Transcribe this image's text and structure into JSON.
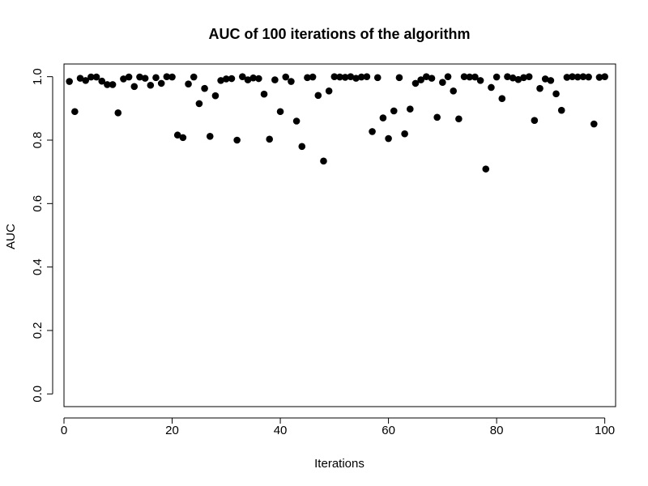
{
  "chart_data": {
    "type": "scatter",
    "title": "AUC of  100  iterations of the algorithm",
    "xlabel": "Iterations",
    "ylabel": "AUC",
    "xlim": [
      0,
      102
    ],
    "ylim": [
      -0.04,
      1.04
    ],
    "xticks": [
      0,
      20,
      40,
      60,
      80,
      100
    ],
    "yticks": [
      0.0,
      0.2,
      0.4,
      0.6,
      0.8,
      1.0
    ],
    "xtick_labels": [
      "0",
      "20",
      "40",
      "60",
      "80",
      "100"
    ],
    "ytick_labels": [
      "0.0",
      "0.2",
      "0.4",
      "0.6",
      "0.8",
      "1.0"
    ],
    "grid": false,
    "legend": "none",
    "marker_color": "#000000",
    "points": [
      {
        "x": 1,
        "y": 0.985
      },
      {
        "x": 2,
        "y": 0.89
      },
      {
        "x": 3,
        "y": 0.995
      },
      {
        "x": 4,
        "y": 0.988
      },
      {
        "x": 5,
        "y": 0.999
      },
      {
        "x": 6,
        "y": 0.999
      },
      {
        "x": 7,
        "y": 0.986
      },
      {
        "x": 8,
        "y": 0.975
      },
      {
        "x": 9,
        "y": 0.975
      },
      {
        "x": 10,
        "y": 0.886
      },
      {
        "x": 11,
        "y": 0.993
      },
      {
        "x": 12,
        "y": 0.999
      },
      {
        "x": 13,
        "y": 0.969
      },
      {
        "x": 14,
        "y": 0.999
      },
      {
        "x": 15,
        "y": 0.995
      },
      {
        "x": 16,
        "y": 0.973
      },
      {
        "x": 17,
        "y": 0.997
      },
      {
        "x": 18,
        "y": 0.979
      },
      {
        "x": 19,
        "y": 1.0
      },
      {
        "x": 20,
        "y": 0.999
      },
      {
        "x": 21,
        "y": 0.816
      },
      {
        "x": 22,
        "y": 0.808
      },
      {
        "x": 23,
        "y": 0.977
      },
      {
        "x": 24,
        "y": 0.999
      },
      {
        "x": 25,
        "y": 0.915
      },
      {
        "x": 26,
        "y": 0.963
      },
      {
        "x": 27,
        "y": 0.812
      },
      {
        "x": 28,
        "y": 0.94
      },
      {
        "x": 29,
        "y": 0.988
      },
      {
        "x": 30,
        "y": 0.993
      },
      {
        "x": 31,
        "y": 0.994
      },
      {
        "x": 32,
        "y": 0.8
      },
      {
        "x": 33,
        "y": 1.0
      },
      {
        "x": 34,
        "y": 0.99
      },
      {
        "x": 35,
        "y": 0.996
      },
      {
        "x": 36,
        "y": 0.994
      },
      {
        "x": 37,
        "y": 0.945
      },
      {
        "x": 38,
        "y": 0.803
      },
      {
        "x": 39,
        "y": 0.99
      },
      {
        "x": 40,
        "y": 0.89
      },
      {
        "x": 41,
        "y": 0.999
      },
      {
        "x": 42,
        "y": 0.985
      },
      {
        "x": 43,
        "y": 0.86
      },
      {
        "x": 44,
        "y": 0.78
      },
      {
        "x": 45,
        "y": 0.997
      },
      {
        "x": 46,
        "y": 0.999
      },
      {
        "x": 47,
        "y": 0.941
      },
      {
        "x": 48,
        "y": 0.734
      },
      {
        "x": 49,
        "y": 0.955
      },
      {
        "x": 50,
        "y": 1.0
      },
      {
        "x": 51,
        "y": 0.999
      },
      {
        "x": 52,
        "y": 0.998
      },
      {
        "x": 53,
        "y": 1.0
      },
      {
        "x": 54,
        "y": 0.995
      },
      {
        "x": 55,
        "y": 0.999
      },
      {
        "x": 56,
        "y": 1.0
      },
      {
        "x": 57,
        "y": 0.827
      },
      {
        "x": 58,
        "y": 0.997
      },
      {
        "x": 59,
        "y": 0.87
      },
      {
        "x": 60,
        "y": 0.805
      },
      {
        "x": 61,
        "y": 0.892
      },
      {
        "x": 62,
        "y": 0.997
      },
      {
        "x": 63,
        "y": 0.82
      },
      {
        "x": 64,
        "y": 0.898
      },
      {
        "x": 65,
        "y": 0.979
      },
      {
        "x": 66,
        "y": 0.99
      },
      {
        "x": 67,
        "y": 1.0
      },
      {
        "x": 68,
        "y": 0.995
      },
      {
        "x": 69,
        "y": 0.872
      },
      {
        "x": 70,
        "y": 0.982
      },
      {
        "x": 71,
        "y": 1.0
      },
      {
        "x": 72,
        "y": 0.955
      },
      {
        "x": 73,
        "y": 0.867
      },
      {
        "x": 74,
        "y": 1.0
      },
      {
        "x": 75,
        "y": 0.999
      },
      {
        "x": 76,
        "y": 0.999
      },
      {
        "x": 77,
        "y": 0.988
      },
      {
        "x": 78,
        "y": 0.709
      },
      {
        "x": 79,
        "y": 0.966
      },
      {
        "x": 80,
        "y": 0.999
      },
      {
        "x": 81,
        "y": 0.931
      },
      {
        "x": 82,
        "y": 1.0
      },
      {
        "x": 83,
        "y": 0.996
      },
      {
        "x": 84,
        "y": 0.991
      },
      {
        "x": 85,
        "y": 0.997
      },
      {
        "x": 86,
        "y": 1.0
      },
      {
        "x": 87,
        "y": 0.862
      },
      {
        "x": 88,
        "y": 0.963
      },
      {
        "x": 89,
        "y": 0.993
      },
      {
        "x": 90,
        "y": 0.988
      },
      {
        "x": 91,
        "y": 0.946
      },
      {
        "x": 92,
        "y": 0.894
      },
      {
        "x": 93,
        "y": 0.998
      },
      {
        "x": 94,
        "y": 1.0
      },
      {
        "x": 95,
        "y": 0.999
      },
      {
        "x": 96,
        "y": 1.0
      },
      {
        "x": 97,
        "y": 0.999
      },
      {
        "x": 98,
        "y": 0.851
      },
      {
        "x": 99,
        "y": 0.998
      },
      {
        "x": 100,
        "y": 1.0
      }
    ]
  }
}
